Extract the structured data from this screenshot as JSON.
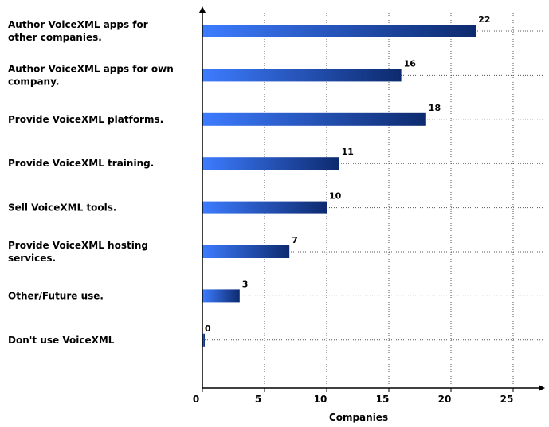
{
  "chart_data": {
    "type": "bar",
    "orientation": "horizontal",
    "categories": [
      [
        "Author VoiceXML apps for",
        "other companies."
      ],
      [
        "Author VoiceXML apps for own",
        "company."
      ],
      [
        "Provide VoiceXML platforms."
      ],
      [
        "Provide VoiceXML training."
      ],
      [
        "Sell VoiceXML tools."
      ],
      [
        "Provide VoiceXML hosting",
        "services."
      ],
      [
        "Other/Future use."
      ],
      [
        "Don't use VoiceXML"
      ]
    ],
    "values": [
      22,
      16,
      18,
      11,
      10,
      7,
      3,
      0
    ],
    "xlabel": "Companies",
    "ylabel": "",
    "xlim": [
      0,
      27
    ],
    "xticks": [
      0,
      5,
      10,
      15,
      20,
      25
    ],
    "grid": true,
    "legend": "none",
    "colors": {
      "bar_light": "#3d7cff",
      "bar_dark": "#0d2a6e",
      "grid": "#555555",
      "axis": "#000000"
    }
  }
}
